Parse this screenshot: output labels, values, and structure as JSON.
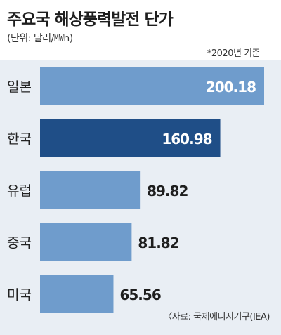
{
  "title": "주요국 해상풍력발전 단가",
  "unit_note": "(단위: 달러/㎿h)",
  "basis_note": "*2020년 기준",
  "source_note": "〈자료: 국제에너지기구(IEA)",
  "colors": {
    "bar_default": "#6f9ccc",
    "bar_highlight": "#1f4e87",
    "plot_bg": "#e9eef4",
    "value_inside": "#ffffff",
    "value_outside": "#1e1e1e"
  },
  "chart_data": {
    "type": "bar",
    "orientation": "horizontal",
    "categories": [
      "일본",
      "한국",
      "유럽",
      "중국",
      "미국"
    ],
    "values": [
      200.18,
      160.98,
      89.82,
      81.82,
      65.56
    ],
    "value_labels": [
      "200.18",
      "160.98",
      "89.82",
      "81.82",
      "65.56"
    ],
    "highlight_category": "한국",
    "title": "주요국 해상풍력발전 단가",
    "xlabel": "",
    "ylabel": "",
    "grid": false,
    "legend": "none"
  }
}
